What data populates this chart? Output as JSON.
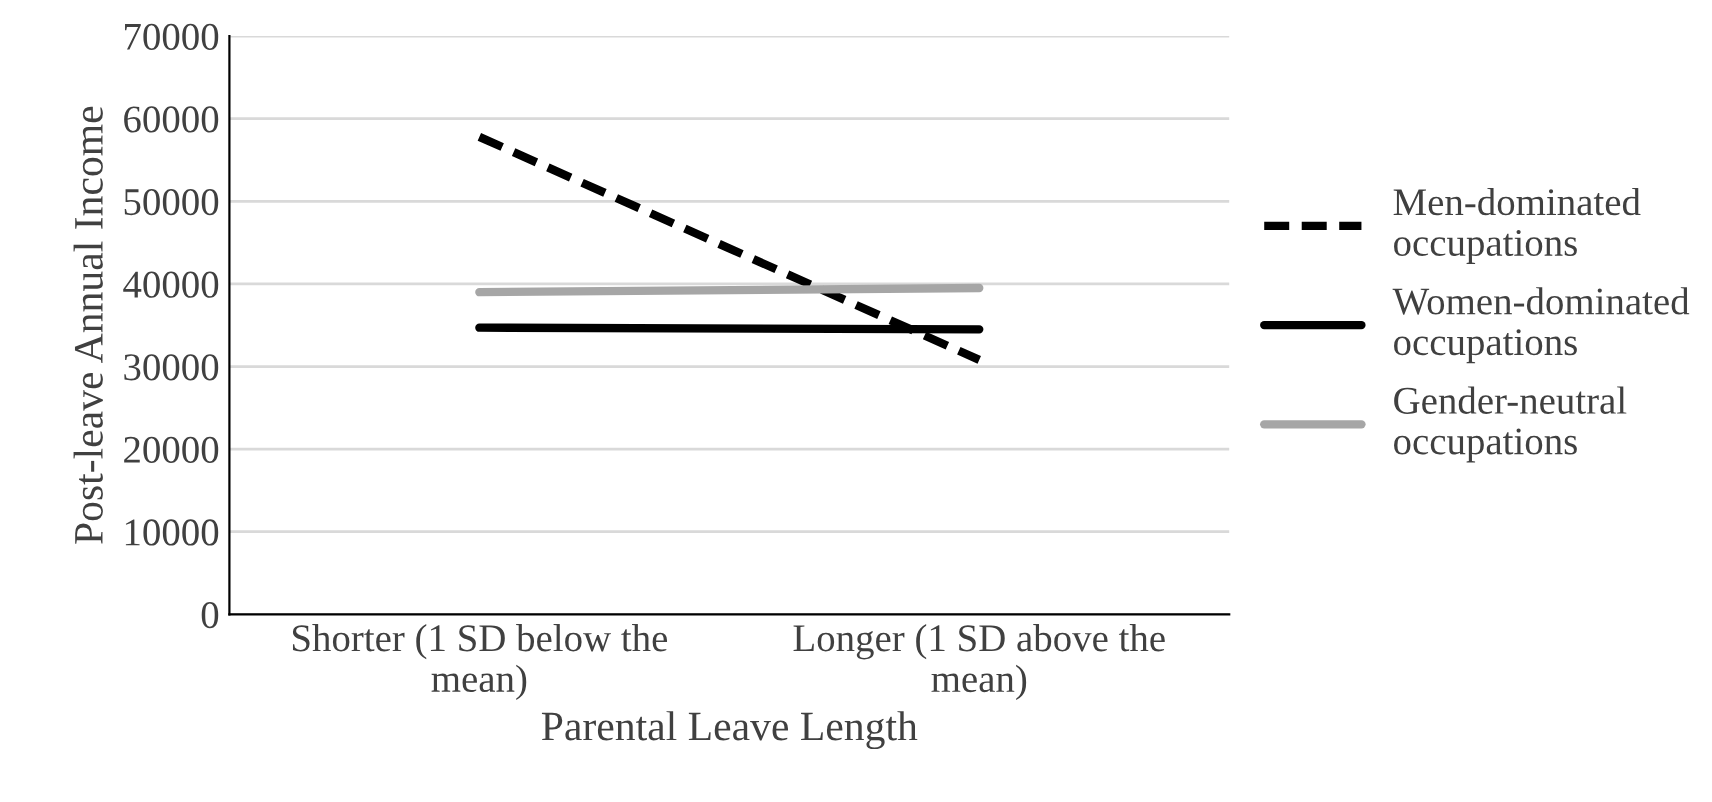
{
  "chart_data": {
    "type": "line",
    "xlabel": "Parental Leave Length",
    "ylabel": "Post-leave Annual Income",
    "categories": [
      "Shorter (1 SD below the\nmean)",
      "Longer (1 SD above the\nmean)"
    ],
    "series": [
      {
        "name": "Men-dominated\noccupations",
        "color": "#000000",
        "line_style": "dashed",
        "values": [
          57800,
          30800
        ]
      },
      {
        "name": "Women-dominated\noccupations",
        "color": "#000000",
        "line_style": "solid",
        "values": [
          34700,
          34500
        ]
      },
      {
        "name": "Gender-neutral\noccupations",
        "color": "#a6a6a6",
        "line_style": "solid",
        "values": [
          39000,
          39500
        ]
      }
    ],
    "ylim": [
      0,
      70000
    ],
    "yticks": [
      0,
      10000,
      20000,
      30000,
      40000,
      50000,
      60000,
      70000
    ],
    "grid": "y",
    "legend": "right",
    "marker": "none"
  }
}
